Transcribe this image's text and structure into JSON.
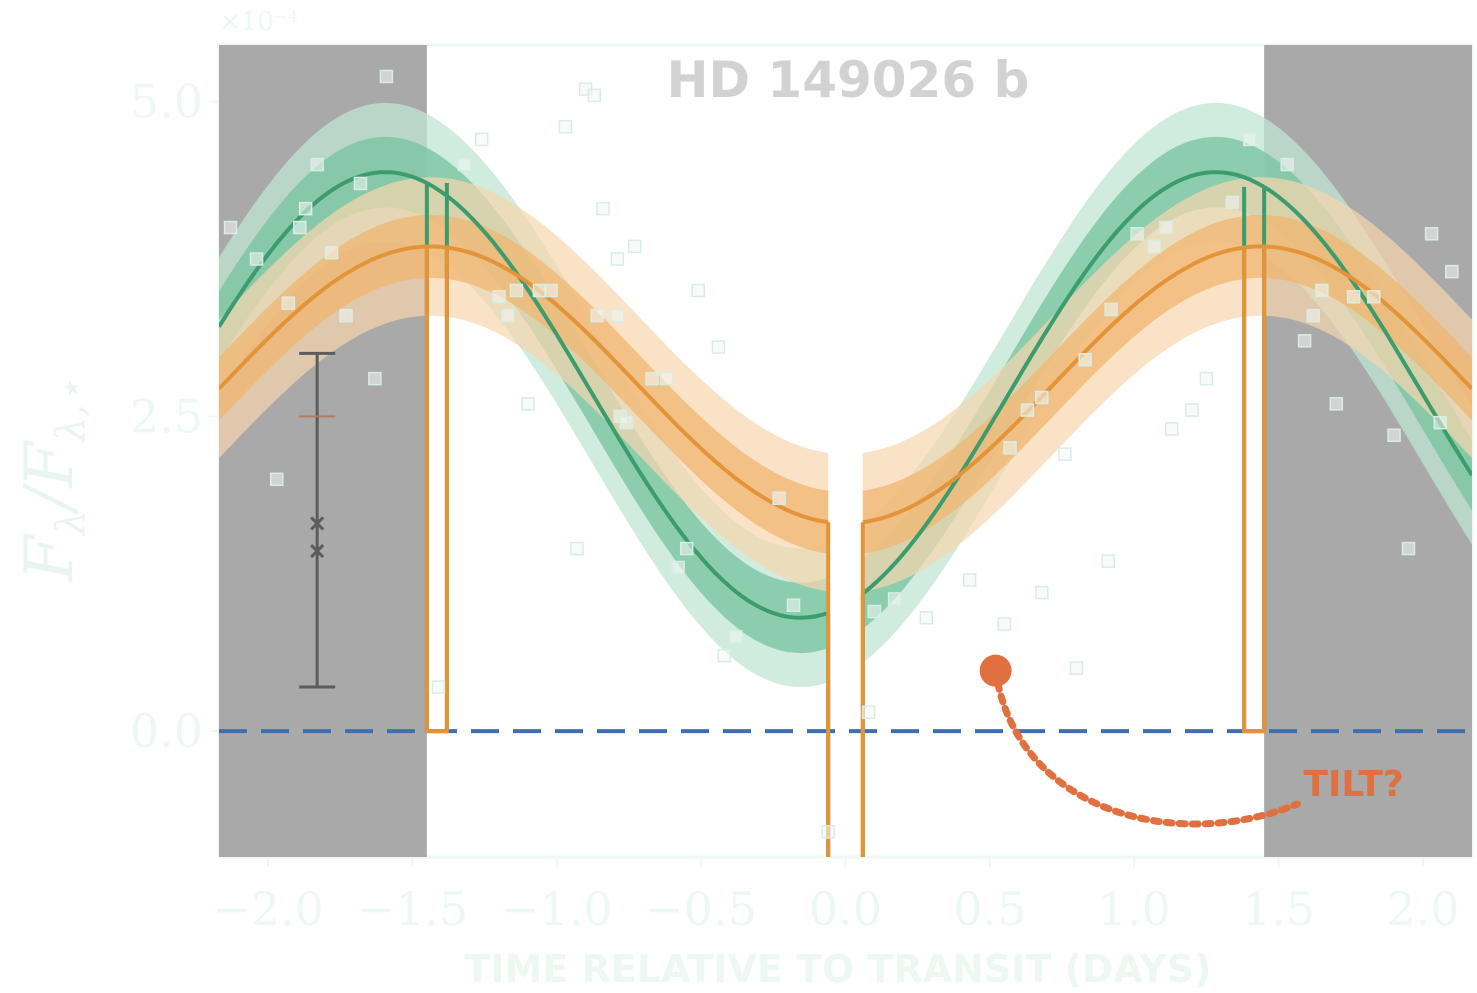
{
  "chart_data": {
    "type": "line",
    "title": "HD 149026 b",
    "xlabel": "TIME RELATIVE TO TRANSIT (DAYS)",
    "ylabel": "F_λ / F_λ,⋆",
    "ylabel_parts": {
      "main": "F",
      "sub1": "λ",
      "slash": "/",
      "main2": "F",
      "sub2": "λ,⋆"
    },
    "y_multiplier": "×10⁻⁴",
    "xlim": [
      -2.17,
      2.17
    ],
    "ylim": [
      -1.0,
      5.45
    ],
    "x_ticks": [
      -2.0,
      -1.5,
      -1.0,
      -0.5,
      0.0,
      0.5,
      1.0,
      1.5,
      2.0
    ],
    "x_tick_labels": [
      "−2.0",
      "−1.5",
      "−1.0",
      "−0.5",
      "0.0",
      "0.5",
      "1.0",
      "1.5",
      "2.0"
    ],
    "y_ticks": [
      0.0,
      2.5,
      5.0
    ],
    "y_tick_labels": [
      "0.0",
      "2.5",
      "5.0"
    ],
    "grid": false,
    "eclipse_regions": [
      [
        -2.17,
        -1.45
      ],
      [
        1.45,
        2.17
      ]
    ],
    "eclipse_half_width": 1.45,
    "transit_gap": [
      -0.06,
      0.06
    ],
    "zero_line": 0.0,
    "period": 2.876,
    "model_green": {
      "mean": 2.67,
      "amplitude": 1.77,
      "phase_offset": 0.34,
      "band_inner": 0.28,
      "band_outer": 0.55
    },
    "model_orange": {
      "mean": 2.75,
      "amplitude": 1.1,
      "phase_offset": 0.0,
      "band_inner": 0.25,
      "band_outer": 0.55
    },
    "error_bar": {
      "x": -1.83,
      "low": 0.35,
      "high": 3.0,
      "markers": [
        1.65,
        1.43
      ],
      "center_tick": 2.5
    },
    "annotation": {
      "text": "TILT?",
      "point_x": 0.52,
      "point_y": 0.48,
      "text_x": 1.6,
      "text_y": -0.42
    },
    "data_points": [
      {
        "x": -2.13,
        "y": 4.0
      },
      {
        "x": -2.04,
        "y": 3.75
      },
      {
        "x": -1.97,
        "y": 2.0
      },
      {
        "x": -1.93,
        "y": 3.4
      },
      {
        "x": -1.89,
        "y": 4.0
      },
      {
        "x": -1.87,
        "y": 4.15
      },
      {
        "x": -1.83,
        "y": 4.5
      },
      {
        "x": -1.78,
        "y": 3.8
      },
      {
        "x": -1.73,
        "y": 3.3
      },
      {
        "x": -1.68,
        "y": 4.35
      },
      {
        "x": -1.63,
        "y": 2.8
      },
      {
        "x": -1.59,
        "y": 5.2
      },
      {
        "x": -1.41,
        "y": 0.35
      },
      {
        "x": -1.32,
        "y": 4.5
      },
      {
        "x": -1.26,
        "y": 4.7
      },
      {
        "x": -1.2,
        "y": 3.45
      },
      {
        "x": -1.17,
        "y": 3.3
      },
      {
        "x": -1.14,
        "y": 3.5
      },
      {
        "x": -1.1,
        "y": 2.6
      },
      {
        "x": -1.06,
        "y": 3.5
      },
      {
        "x": -1.02,
        "y": 3.5
      },
      {
        "x": -0.97,
        "y": 4.8
      },
      {
        "x": -0.93,
        "y": 1.45
      },
      {
        "x": -0.9,
        "y": 5.1
      },
      {
        "x": -0.87,
        "y": 5.05
      },
      {
        "x": -0.86,
        "y": 3.3
      },
      {
        "x": -0.84,
        "y": 4.15
      },
      {
        "x": -0.79,
        "y": 3.75
      },
      {
        "x": -0.79,
        "y": 3.3
      },
      {
        "x": -0.78,
        "y": 2.5
      },
      {
        "x": -0.76,
        "y": 2.45
      },
      {
        "x": -0.73,
        "y": 3.85
      },
      {
        "x": -0.67,
        "y": 2.8
      },
      {
        "x": -0.62,
        "y": 2.8
      },
      {
        "x": -0.58,
        "y": 1.3
      },
      {
        "x": -0.55,
        "y": 1.45
      },
      {
        "x": -0.51,
        "y": 3.5
      },
      {
        "x": -0.44,
        "y": 3.05
      },
      {
        "x": -0.42,
        "y": 0.6
      },
      {
        "x": -0.38,
        "y": 0.75
      },
      {
        "x": -0.23,
        "y": 1.85
      },
      {
        "x": -0.18,
        "y": 1.0
      },
      {
        "x": -0.06,
        "y": -0.8
      },
      {
        "x": 0.08,
        "y": 0.15
      },
      {
        "x": 0.1,
        "y": 0.95
      },
      {
        "x": 0.17,
        "y": 1.05
      },
      {
        "x": 0.28,
        "y": 0.9
      },
      {
        "x": 0.43,
        "y": 1.2
      },
      {
        "x": 0.55,
        "y": 0.85
      },
      {
        "x": 0.57,
        "y": 2.25
      },
      {
        "x": 0.63,
        "y": 2.55
      },
      {
        "x": 0.68,
        "y": 2.65
      },
      {
        "x": 0.68,
        "y": 1.1
      },
      {
        "x": 0.76,
        "y": 2.2
      },
      {
        "x": 0.8,
        "y": 0.5
      },
      {
        "x": 0.83,
        "y": 2.95
      },
      {
        "x": 0.91,
        "y": 1.35
      },
      {
        "x": 0.92,
        "y": 3.35
      },
      {
        "x": 1.01,
        "y": 3.95
      },
      {
        "x": 1.07,
        "y": 3.85
      },
      {
        "x": 1.11,
        "y": 4.0
      },
      {
        "x": 1.13,
        "y": 2.4
      },
      {
        "x": 1.2,
        "y": 2.55
      },
      {
        "x": 1.25,
        "y": 2.8
      },
      {
        "x": 1.34,
        "y": 4.2
      },
      {
        "x": 1.4,
        "y": 4.7
      },
      {
        "x": 1.53,
        "y": 4.5
      },
      {
        "x": 1.59,
        "y": 3.1
      },
      {
        "x": 1.62,
        "y": 3.3
      },
      {
        "x": 1.65,
        "y": 3.5
      },
      {
        "x": 1.7,
        "y": 2.6
      },
      {
        "x": 1.76,
        "y": 3.45
      },
      {
        "x": 1.83,
        "y": 3.45
      },
      {
        "x": 1.9,
        "y": 2.35
      },
      {
        "x": 1.95,
        "y": 1.45
      },
      {
        "x": 2.03,
        "y": 3.95
      },
      {
        "x": 2.06,
        "y": 2.45
      },
      {
        "x": 2.1,
        "y": 3.65
      }
    ],
    "colors": {
      "eclipse": "#a9a9a9",
      "green_line": "#3d9c6d",
      "green_band_outer": "#bfe5d3",
      "green_band_inner": "#75c39c",
      "orange_line": "#e39439",
      "orange_band_outer": "#f7d6ae",
      "orange_band_inner": "#f0b670",
      "zero_line": "#3f6fb1",
      "error_bar": "#5c5c5c",
      "annotation": "#e07040",
      "marker_fill": "#f2f8f5",
      "marker_stroke": "#d8eee3"
    }
  }
}
